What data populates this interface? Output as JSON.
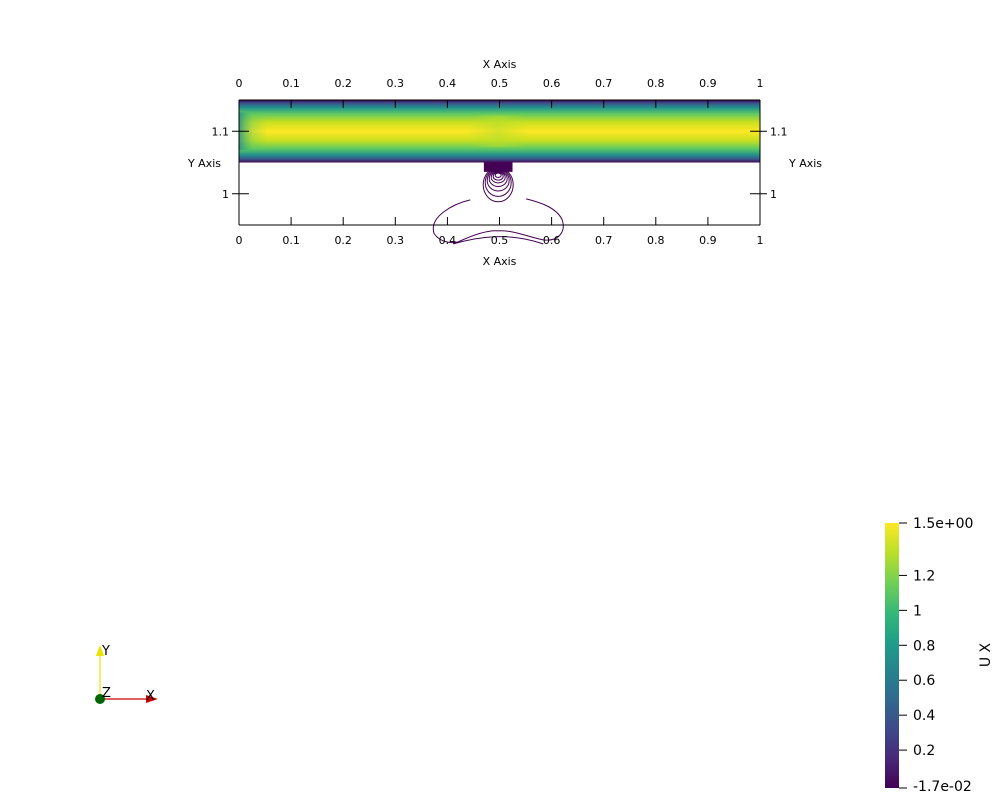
{
  "chart_data": {
    "type": "heatmap",
    "field": "U X",
    "colormap": "viridis",
    "x_axis": {
      "title": "X Axis",
      "range": [
        0,
        1
      ],
      "ticks": [
        "0",
        "0.1",
        "0.2",
        "0.3",
        "0.4",
        "0.5",
        "0.6",
        "0.7",
        "0.8",
        "0.9",
        "1"
      ]
    },
    "y_axis": {
      "title": "Y Axis",
      "range": [
        0.95,
        1.15
      ],
      "ticks": [
        "1",
        "1.1"
      ],
      "tick_values": [
        1.0,
        1.1
      ]
    },
    "channel": {
      "y_min": 1.05,
      "y_max": 1.15
    },
    "outlet_block": {
      "x_min": 0.47,
      "x_max": 0.525,
      "y_min": 1.035,
      "y_max": 1.05
    },
    "colorbar": {
      "title": "U X",
      "range": [
        -0.017,
        1.5
      ],
      "max_label": "1.5e+00",
      "min_label": "-1.7e-02",
      "tick_values": [
        1.2,
        1.0,
        0.8,
        0.6,
        0.4,
        0.2
      ],
      "tick_labels": [
        "1.2",
        "1",
        "0.8",
        "0.6",
        "0.4",
        "0.2"
      ]
    },
    "colors": {
      "viridis": [
        "#440154",
        "#482878",
        "#3e4989",
        "#31688e",
        "#26828e",
        "#1f9e89",
        "#35b779",
        "#6ece58",
        "#b5de2b",
        "#fde725"
      ],
      "contour": "#440154",
      "axis": "#000000"
    }
  },
  "orientation_axes": {
    "x_label": "X",
    "y_label": "Y",
    "z_label": "Z",
    "x_color": "#cc0000",
    "y_color": "#e6e600",
    "z_color": "#006400"
  }
}
